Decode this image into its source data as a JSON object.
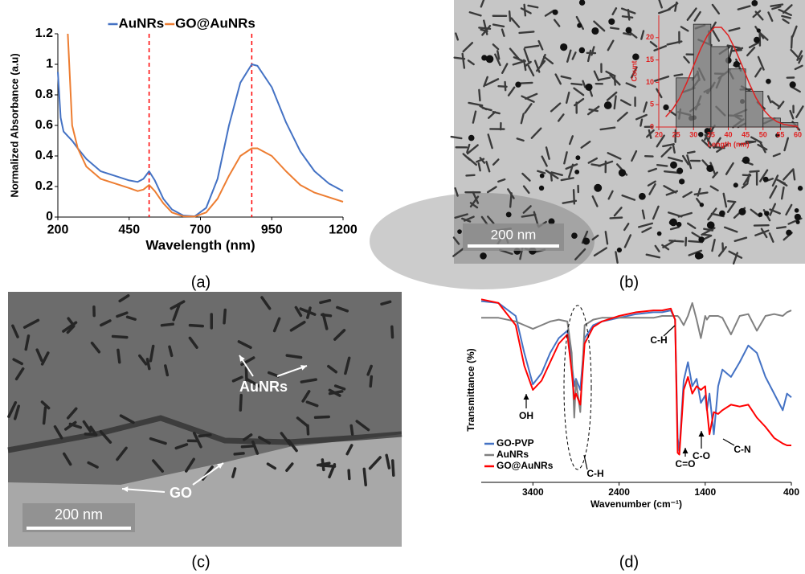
{
  "panel_labels": [
    "(a)",
    "(b)",
    "(c)",
    "(d)"
  ],
  "image_b": {
    "scale_bar": "200 nm"
  },
  "image_c": {
    "scale_bar": "200 nm",
    "labels": [
      "AuNRs",
      "GO"
    ]
  },
  "chart_data": [
    {
      "type": "line",
      "xlabel": "Wavelength (nm)",
      "ylabel": "Normalized Absorbance (a.u)",
      "x": [
        200,
        210,
        220,
        235,
        250,
        270,
        300,
        350,
        400,
        450,
        480,
        500,
        520,
        540,
        570,
        600,
        640,
        680,
        720,
        760,
        800,
        840,
        880,
        900,
        950,
        1000,
        1050,
        1100,
        1150,
        1200
      ],
      "series": [
        {
          "name": "AuNRs",
          "color": "#4472c4",
          "values": [
            0.95,
            0.65,
            0.56,
            0.53,
            0.5,
            0.45,
            0.38,
            0.3,
            0.27,
            0.24,
            0.23,
            0.25,
            0.3,
            0.24,
            0.12,
            0.05,
            0.01,
            0.005,
            0.06,
            0.25,
            0.6,
            0.88,
            1.0,
            0.99,
            0.85,
            0.62,
            0.43,
            0.3,
            0.22,
            0.17
          ]
        },
        {
          "name": "GO@AuNRs",
          "color": "#ed7d31",
          "values": [
            null,
            null,
            null,
            1.2,
            0.6,
            0.45,
            0.33,
            0.25,
            0.22,
            0.19,
            0.17,
            0.18,
            0.21,
            0.17,
            0.09,
            0.03,
            0.005,
            0.003,
            0.03,
            0.12,
            0.27,
            0.4,
            0.45,
            0.45,
            0.4,
            0.3,
            0.21,
            0.16,
            0.13,
            0.1
          ]
        }
      ],
      "xlim": [
        200,
        1200
      ],
      "xticks": [
        200,
        450,
        700,
        950,
        1200
      ],
      "ylim": [
        0,
        1.2
      ],
      "yticks": [
        0,
        0.2,
        0.4,
        0.6,
        0.8,
        1,
        1.2
      ],
      "vlines": [
        520,
        880
      ],
      "vline_color": "#ff0000",
      "legend": "top"
    },
    {
      "type": "histogram",
      "xlabel": "Length (nm)",
      "ylabel": "Count",
      "bins": [
        20,
        25,
        30,
        35,
        40,
        45,
        50,
        55,
        60
      ],
      "values": [
        0,
        11,
        23,
        18,
        13,
        8,
        2,
        1
      ],
      "color": "#7a7a7a",
      "text_color": "#e02020",
      "fit": {
        "color": "#e02020",
        "x": [
          22,
          24,
          26,
          28,
          30,
          32,
          34,
          36,
          38,
          40,
          42,
          44,
          46,
          48,
          50,
          52,
          54,
          56,
          58,
          60
        ],
        "values": [
          2.3,
          4.0,
          6.5,
          9.8,
          13.7,
          17.4,
          20.5,
          22.3,
          22.3,
          20.5,
          17.4,
          13.7,
          9.8,
          6.5,
          4.0,
          2.3,
          1.2,
          0.6,
          0.3,
          0.1
        ]
      },
      "xlim": [
        20,
        60
      ],
      "xticks": [
        20,
        25,
        30,
        35,
        40,
        45,
        50,
        55,
        60
      ],
      "ylim": [
        0,
        25
      ],
      "yticks": [
        0,
        5,
        10,
        15,
        20
      ]
    },
    {
      "type": "line",
      "xlabel": "Wavenumber (cm⁻¹)",
      "ylabel": "Transmittance (%)",
      "x": [
        4000,
        3800,
        3600,
        3500,
        3400,
        3300,
        3200,
        3100,
        3000,
        2950,
        2920,
        2900,
        2850,
        2800,
        2700,
        2600,
        2400,
        2200,
        2000,
        1900,
        1800,
        1750,
        1720,
        1700,
        1650,
        1600,
        1550,
        1500,
        1450,
        1400,
        1380,
        1350,
        1300,
        1250,
        1200,
        1100,
        1000,
        900,
        800,
        700,
        600,
        500,
        450,
        400
      ],
      "series": [
        {
          "name": "GO-PVP",
          "color": "#4472c4",
          "values": [
            98,
            97,
            90,
            70,
            53,
            59,
            70,
            78,
            82,
            65,
            52,
            56,
            50,
            78,
            85,
            87,
            89,
            91,
            92,
            92,
            93,
            88,
            24,
            17,
            55,
            65,
            52,
            56,
            43,
            47,
            39,
            48,
            26,
            52,
            61,
            57,
            65,
            74,
            70,
            57,
            48,
            39,
            48,
            46
          ]
        },
        {
          "name": "AuNRs",
          "color": "#808080",
          "values": [
            89,
            89,
            87,
            85,
            83,
            85,
            87,
            88,
            87,
            70,
            35,
            55,
            38,
            85,
            88,
            89,
            89,
            89,
            89,
            90,
            90,
            90,
            90,
            89,
            85,
            90,
            97,
            88,
            78,
            90,
            88,
            90,
            90,
            90,
            89,
            80,
            90,
            91,
            82,
            90,
            91,
            90,
            92,
            93
          ]
        },
        {
          "name": "GO@AuNRs",
          "color": "#ff0000",
          "values": [
            99,
            97,
            85,
            63,
            50,
            55,
            65,
            75,
            80,
            60,
            45,
            48,
            42,
            75,
            84,
            87,
            90,
            92,
            93,
            93,
            94,
            88,
            16,
            15,
            50,
            57,
            48,
            52,
            50,
            52,
            40,
            26,
            38,
            37,
            39,
            42,
            41,
            42,
            35,
            30,
            24,
            21,
            20,
            20
          ]
        }
      ],
      "xlim": [
        4000,
        400
      ],
      "xticks": [
        3400,
        2400,
        1400,
        400
      ],
      "ylim": [
        0,
        100
      ],
      "annotations": [
        "OH",
        "C-H",
        "C-H",
        "C=O",
        "C-O",
        "C-N"
      ],
      "legend": "lower left"
    }
  ]
}
